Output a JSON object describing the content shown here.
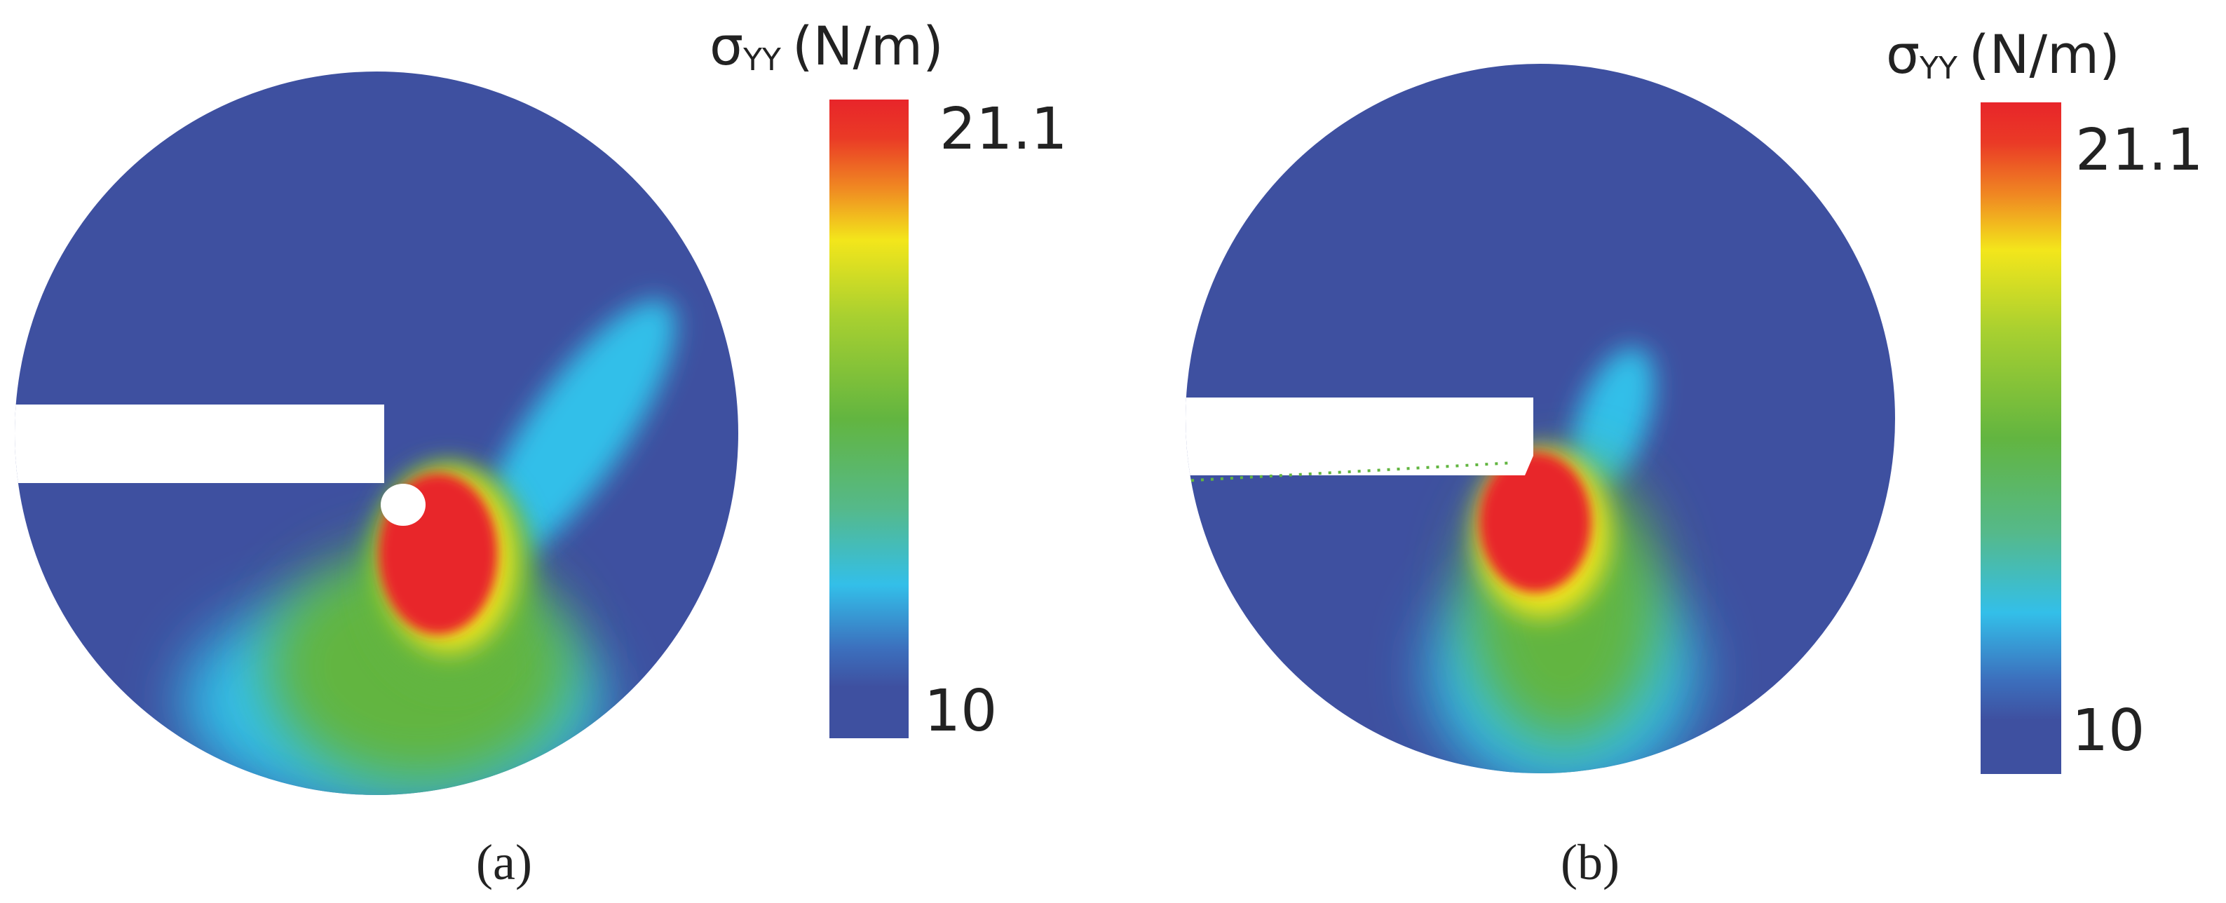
{
  "panels": [
    {
      "label": "(a)",
      "colorbar": {
        "symbol": "σ",
        "subscript": "YY",
        "unit": "(N/m)",
        "max": "21.1",
        "min": "10"
      }
    },
    {
      "label": "(b)",
      "colorbar": {
        "symbol": "σ",
        "subscript": "YY",
        "unit": "(N/m)",
        "max": "21.1",
        "min": "10"
      }
    }
  ]
}
